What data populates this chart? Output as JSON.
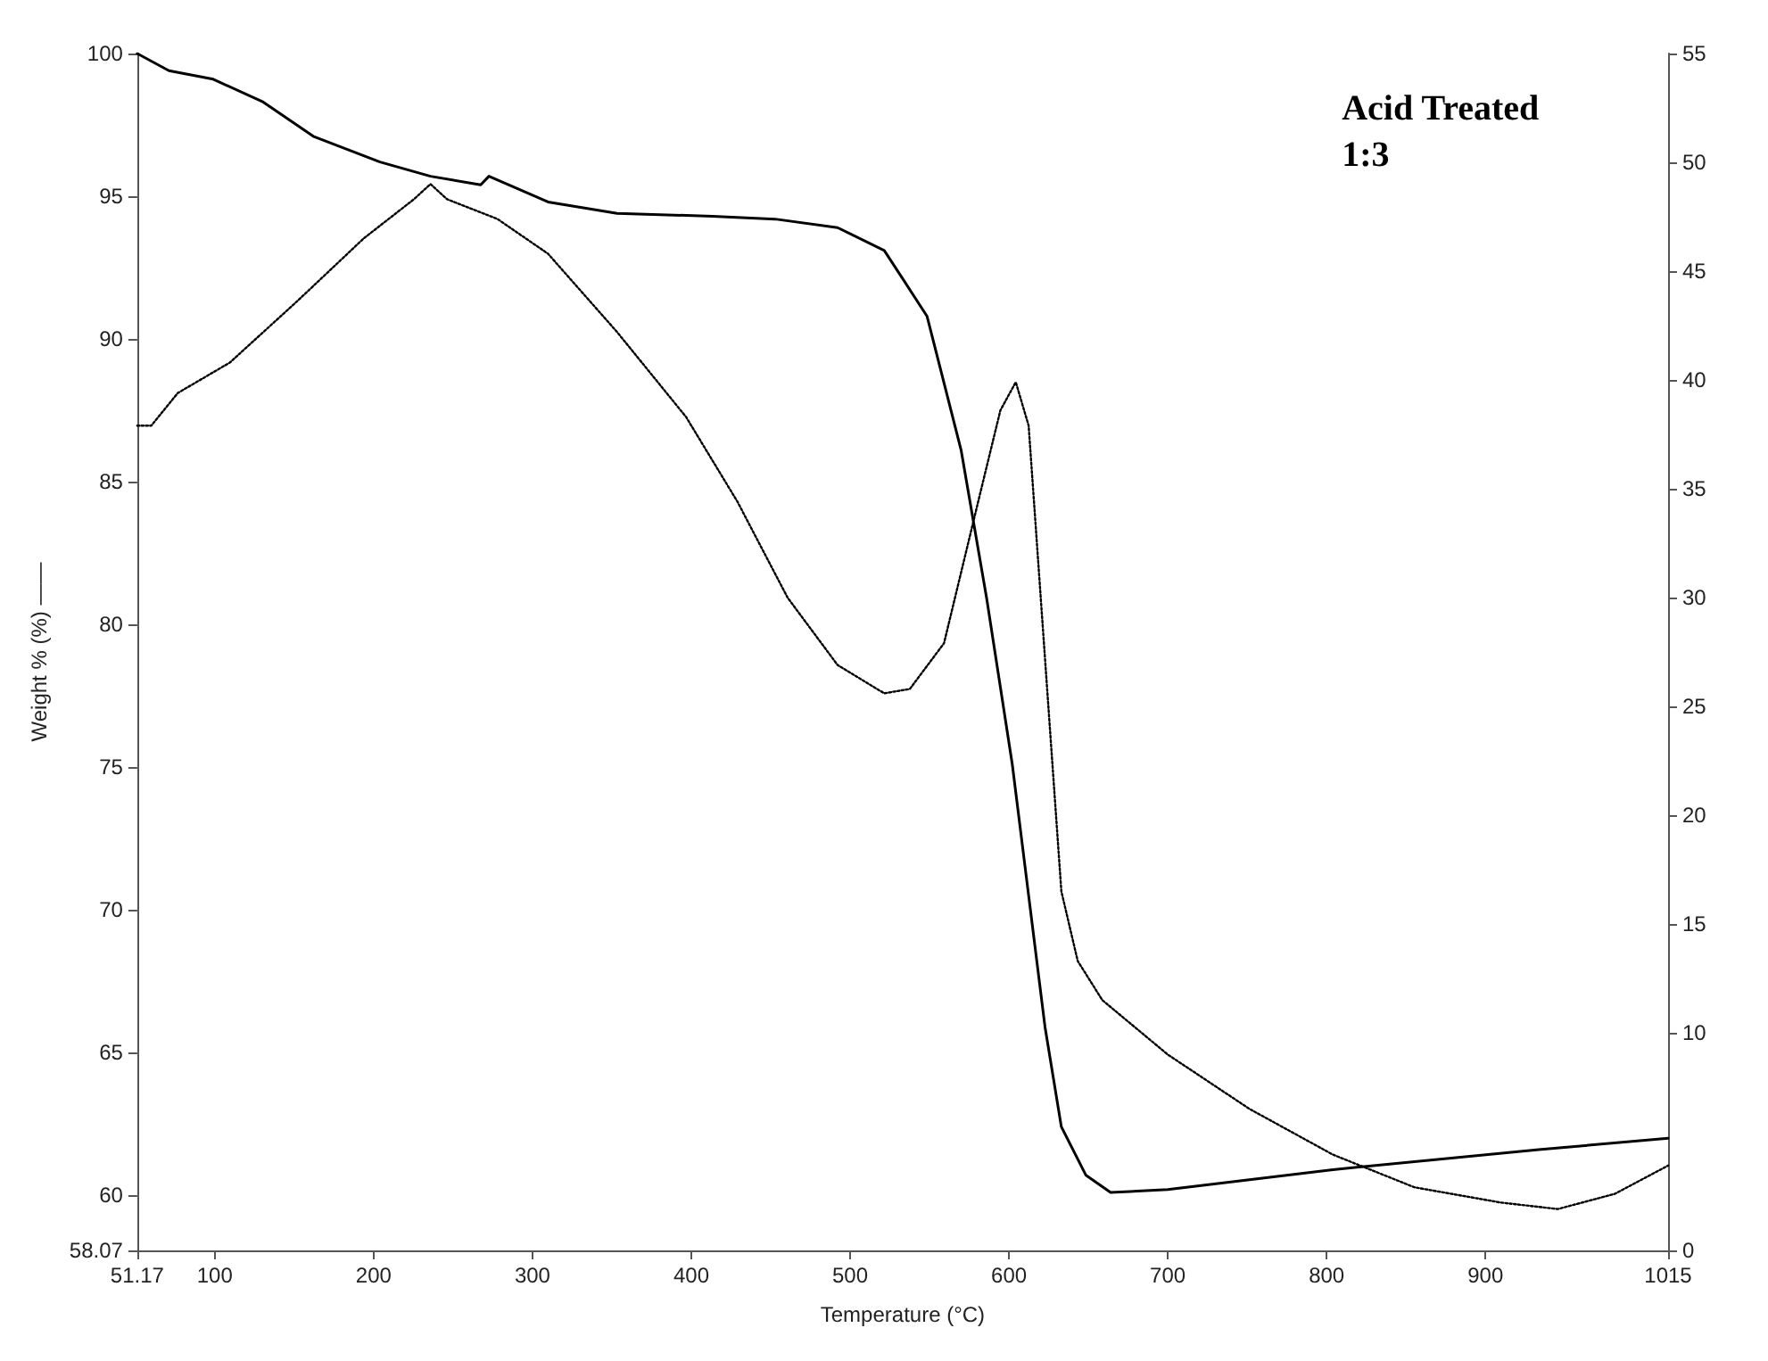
{
  "chart_data": {
    "type": "line",
    "xlabel": "Temperature (°C)",
    "ylabel": "Weight % (%) ——",
    "annotations": [
      "Acid Treated\n1:3"
    ],
    "xlim": [
      51.17,
      1015
    ],
    "xticks": [
      51.17,
      100,
      200,
      300,
      400,
      500,
      600,
      700,
      800,
      900,
      1015
    ],
    "ylim": [
      58.07,
      100
    ],
    "yticks": [
      58.07,
      60,
      65,
      70,
      75,
      80,
      85,
      90,
      95,
      100
    ],
    "y2lim": [
      0,
      55
    ],
    "y2ticks": [
      0,
      10,
      15,
      20,
      25,
      30,
      35,
      40,
      45,
      50,
      55
    ],
    "grid": false,
    "marker": "none",
    "series": [
      {
        "color": "#000000",
        "line_style": "solid",
        "x": [
          51.17,
          71.1,
          99,
          130.5,
          162,
          204,
          235.8,
          267.4,
          272.6,
          309.8,
          353.3,
          413.4,
          452.8,
          492.1,
          521.5,
          548.4,
          569.9,
          586,
          602.1,
          612.4,
          622.7,
          633,
          648.5,
          664,
          700,
          804,
          933.5,
          1015
        ],
        "values": [
          100,
          99.4,
          99.1,
          98.3,
          97.1,
          96.2,
          95.7,
          95.4,
          95.7,
          94.8,
          94.4,
          94.3,
          94.2,
          93.9,
          93.1,
          90.8,
          86.1,
          80.9,
          75.1,
          70.5,
          65.9,
          62.4,
          60.7,
          60.1,
          60.2,
          60.9,
          61.6,
          62
        ]
      },
      {
        "color": "#000000",
        "line_style": "dotted",
        "axis": "y2",
        "x": [
          51.17,
          60,
          76.7,
          109.5,
          151.6,
          193.7,
          225.3,
          235.8,
          246.3,
          277.9,
          309.8,
          353.3,
          396.7,
          429.1,
          460.6,
          492.1,
          521.5,
          537.6,
          559.1,
          580.6,
          594.6,
          604.3,
          612.4,
          622.7,
          633,
          643.3,
          658.8,
          700,
          751.5,
          804,
          855.3,
          909.6,
          945.5,
          981.5,
          1015
        ],
        "values": [
          37.9,
          37.9,
          39.4,
          40.8,
          43.6,
          46.5,
          48.3,
          49,
          48.3,
          47.4,
          45.8,
          42.2,
          38.3,
          34.4,
          30,
          26.9,
          25.6,
          25.8,
          27.9,
          34.4,
          38.6,
          39.9,
          37.9,
          27.2,
          16.5,
          13.3,
          11.5,
          9,
          6.5,
          4.4,
          2.9,
          2.2,
          1.9,
          2.6,
          3.9
        ]
      }
    ]
  }
}
